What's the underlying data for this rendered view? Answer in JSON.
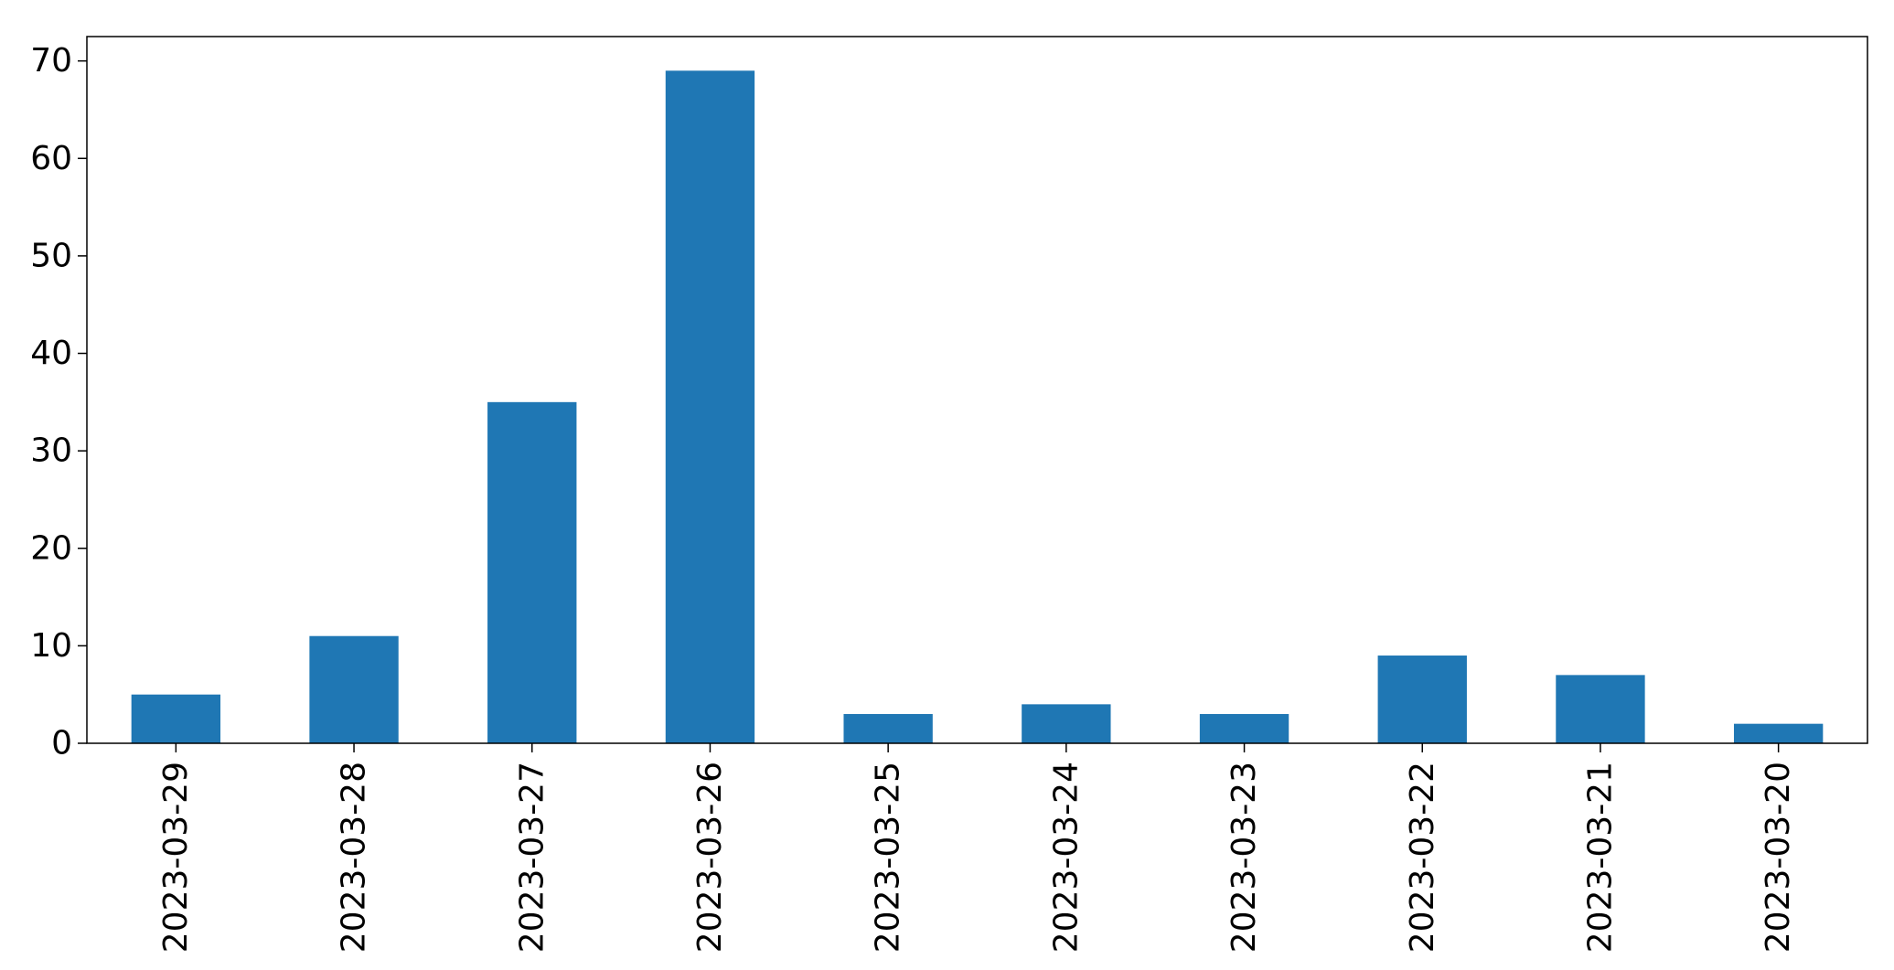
{
  "chart_data": {
    "type": "bar",
    "title": "",
    "xlabel": "",
    "ylabel": "",
    "categories": [
      "2023-03-29",
      "2023-03-28",
      "2023-03-27",
      "2023-03-26",
      "2023-03-25",
      "2023-03-24",
      "2023-03-23",
      "2023-03-22",
      "2023-03-21",
      "2023-03-20"
    ],
    "values": [
      5,
      11,
      35,
      69,
      3,
      4,
      3,
      9,
      7,
      2
    ],
    "ylim": [
      0,
      72.5
    ],
    "yticks": [
      0,
      10,
      20,
      30,
      40,
      50,
      60,
      70
    ],
    "bar_color": "#1f77b4",
    "grid": false,
    "legend": "none"
  }
}
